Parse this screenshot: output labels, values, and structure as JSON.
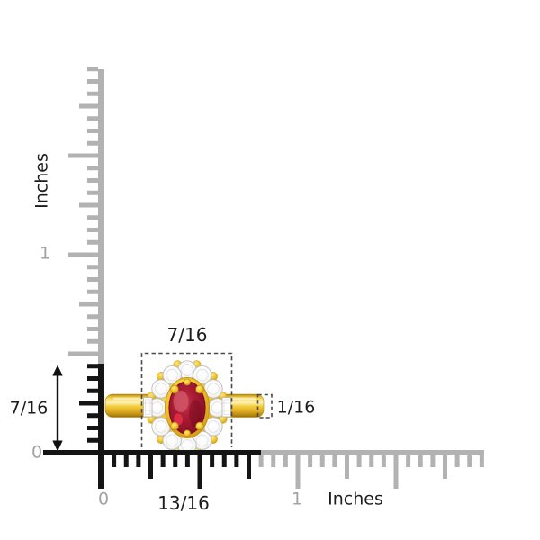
{
  "measurements": {
    "head_width": "7/16",
    "ring_height": "7/16",
    "band_thickness": "1/16",
    "ring_width": "13/16"
  },
  "vertical_ruler": {
    "unit_label": "Inches",
    "tick_number_one": "1",
    "tick_number_zero": "0"
  },
  "horizontal_ruler": {
    "unit_label": "Inches",
    "tick_number_zero": "0",
    "tick_number_one": "1"
  },
  "colors": {
    "ruler_gray": "#b2b2b2",
    "ruler_black": "#141414",
    "label_gray": "#a2a2a2",
    "label_black": "#1c1c1c",
    "dash_gray": "#4a4a4a",
    "gold": "#f0c52f",
    "gold_dark": "#b98a13",
    "ruby_red": "#a81a32",
    "diamond_white": "#ffffff",
    "background": "#ffffff"
  }
}
